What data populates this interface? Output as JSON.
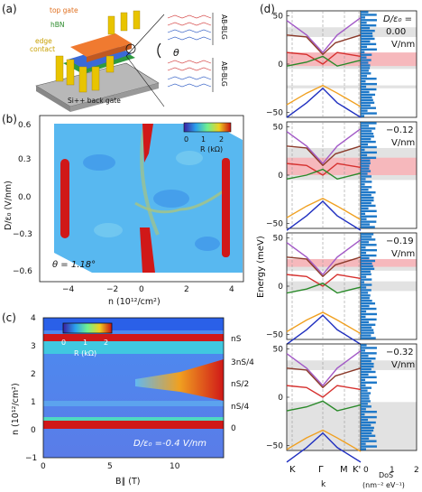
{
  "panels": {
    "a": {
      "label": "(a)",
      "top_gate": "top gate",
      "hbn": "hBN",
      "edge_contact": "edge\ncontact",
      "back_gate": "Si++ back gate",
      "theta": "θ",
      "layer1": "AB-BLG",
      "layer2": "AB-BLG"
    },
    "b": {
      "label": "(b)",
      "annotation": "θ = 1.18°",
      "colorbar_label": "R (kΩ)",
      "colorbar_ticks": [
        "0",
        "1",
        "2"
      ]
    },
    "c": {
      "label": "(c)",
      "annotation": "D/ε₀ =-0.4 V/nm",
      "colorbar_label": "R (kΩ)",
      "colorbar_ticks": [
        "0",
        "1",
        "2"
      ],
      "right_labels": [
        "nS",
        "3nS/4",
        "nS/2",
        "nS/4",
        "0"
      ]
    },
    "d": {
      "label": "(d)",
      "ylabel": "Energy (meV)",
      "k_labels": [
        "K",
        "Γ",
        "M",
        "K'"
      ],
      "k_axis_label": "k",
      "dos_label": "DoS",
      "dos_unit": "(nm⁻² eV⁻¹)",
      "dos_ticks": [
        "0",
        "1",
        "2"
      ],
      "field_label_1": "D/ε₀ =",
      "field_values": [
        "0.00",
        "−0.12",
        "−0.19",
        "−0.32"
      ],
      "field_unit": "V/nm",
      "yticks": [
        "50",
        "0",
        "−50"
      ]
    }
  },
  "chart_data": [
    {
      "type": "heatmap",
      "panel": "b",
      "xlabel": "n (10¹²/cm²)",
      "ylabel": "D/ε₀ (V/nm)",
      "xlim": [
        -4.5,
        4.5
      ],
      "ylim": [
        -0.65,
        0.65
      ],
      "xticks": [
        -4,
        -2,
        0,
        2,
        4
      ],
      "yticks": [
        -0.6,
        -0.3,
        0.0,
        0.3,
        0.6
      ],
      "colorbar_range": [
        0,
        2.5
      ]
    },
    {
      "type": "heatmap",
      "panel": "c",
      "xlabel": "B∥ (T)",
      "ylabel": "n (10¹²/cm²)",
      "xlim": [
        0,
        13
      ],
      "ylim": [
        -1,
        4
      ],
      "xticks": [
        0,
        5,
        10
      ],
      "yticks": [
        -1,
        0,
        1,
        2,
        3,
        4
      ],
      "colorbar_range": [
        0,
        2.5
      ]
    },
    {
      "type": "line",
      "panel": "d",
      "xlabel": "k",
      "ylabel": "Energy (meV)",
      "ylim": [
        -55,
        55
      ],
      "subpanels": 4,
      "field_values": [
        0.0,
        -0.12,
        -0.19,
        -0.32
      ],
      "series": [
        {
          "name": "",
          "color": "#a259c7"
        },
        {
          "name": "",
          "color": "#8b3a2a"
        },
        {
          "name": "",
          "color": "#d6312f"
        },
        {
          "name": "",
          "color": "#2a8a2a"
        },
        {
          "name": "",
          "color": "#f0a020"
        },
        {
          "name": "",
          "color": "#2030c0"
        }
      ]
    }
  ]
}
